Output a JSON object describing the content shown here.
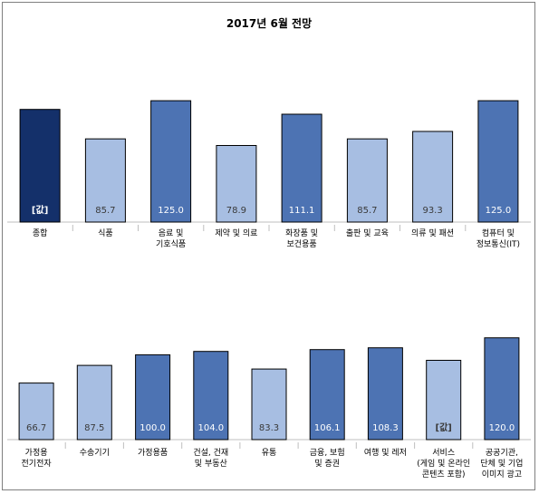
{
  "chart_data": [
    {
      "type": "bar",
      "title": "2017년 6월 전망",
      "categories": [
        [
          "종합"
        ],
        [
          "식품"
        ],
        [
          "음료 및",
          "기호식품"
        ],
        [
          "제약 및 의료"
        ],
        [
          "화장품 및",
          "보건용품"
        ],
        [
          "출판 및 교육"
        ],
        [
          "의류 및 패션"
        ],
        [
          "컴퓨터 및",
          "정보통신(IT)"
        ]
      ],
      "values": [
        116.0,
        85.7,
        125.0,
        78.9,
        111.1,
        85.7,
        93.3,
        125.0
      ],
      "labels": [
        "[값]",
        "85.7",
        "125.0",
        "78.9",
        "111.1",
        "85.7",
        "93.3",
        "125.0"
      ],
      "colors": [
        "#14306a",
        "#a7bee2",
        "#4d73b3",
        "#a7bee2",
        "#4d73b3",
        "#a7bee2",
        "#a7bee2",
        "#4d73b3"
      ],
      "label_colors": [
        "#ffffff",
        "#3a3a3a",
        "#ffffff",
        "#3a3a3a",
        "#ffffff",
        "#3a3a3a",
        "#3a3a3a",
        "#ffffff"
      ],
      "ylim": [
        0,
        140
      ]
    },
    {
      "type": "bar",
      "categories": [
        [
          "가정용",
          "전기전자"
        ],
        [
          "수송기기"
        ],
        [
          "가정용품"
        ],
        [
          "건설, 건재",
          "및 부동산"
        ],
        [
          "유통"
        ],
        [
          "금융, 보험",
          "및 증권"
        ],
        [
          "여행 및 레저"
        ],
        [
          "서비스",
          "(게임 및 온라인",
          "콘텐츠 포함)"
        ],
        [
          "공공기관,",
          "단체 및 기업",
          "이미지 광고"
        ]
      ],
      "values": [
        66.7,
        87.5,
        100.0,
        104.0,
        83.3,
        106.1,
        108.3,
        93.5,
        120.0
      ],
      "labels": [
        "66.7",
        "87.5",
        "100.0",
        "104.0",
        "83.3",
        "106.1",
        "108.3",
        "[값]",
        "120.0"
      ],
      "colors": [
        "#a7bee2",
        "#a7bee2",
        "#4d73b3",
        "#4d73b3",
        "#a7bee2",
        "#4d73b3",
        "#4d73b3",
        "#a7bee2",
        "#4d73b3"
      ],
      "label_colors": [
        "#3a3a3a",
        "#3a3a3a",
        "#ffffff",
        "#ffffff",
        "#3a3a3a",
        "#ffffff",
        "#ffffff",
        "#3a3a3a",
        "#ffffff"
      ],
      "ylim": [
        0,
        140
      ]
    }
  ]
}
